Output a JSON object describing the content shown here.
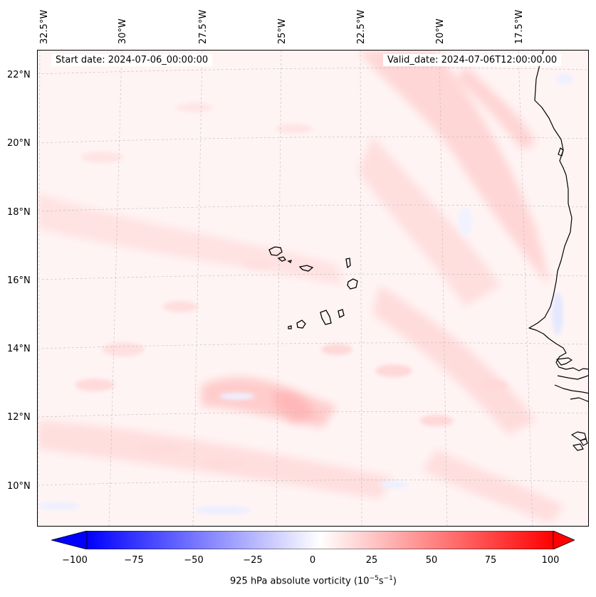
{
  "map": {
    "start_date_label": "Start date: 2024-07-06_00:00:00",
    "valid_date_label": "Valid_date: 2024-07-06T12:00:00.00",
    "longitude_labels": [
      "32.5°W",
      "30°W",
      "27.5°W",
      "25°W",
      "22.5°W",
      "20°W",
      "17.5°W"
    ],
    "latitude_labels": [
      "22°N",
      "20°N",
      "18°N",
      "16°N",
      "14°N",
      "12°N",
      "10°N"
    ],
    "field": "925 hPa absolute vorticity",
    "features": [
      "Cape Verde islands",
      "West African coastline"
    ]
  },
  "colorbar": {
    "ticks": [
      "−100",
      "−75",
      "−50",
      "−25",
      "0",
      "25",
      "50",
      "75",
      "100"
    ],
    "label_main": "925 hPa absolute vorticity (10",
    "label_exp1": "−5",
    "label_mid": "s",
    "label_exp2": "−1",
    "label_end": ")",
    "range": [
      -100,
      100
    ],
    "colormap": "bwr",
    "negative_color": "#0000ff",
    "zero_color": "#ffffff",
    "positive_color": "#ff0000"
  }
}
